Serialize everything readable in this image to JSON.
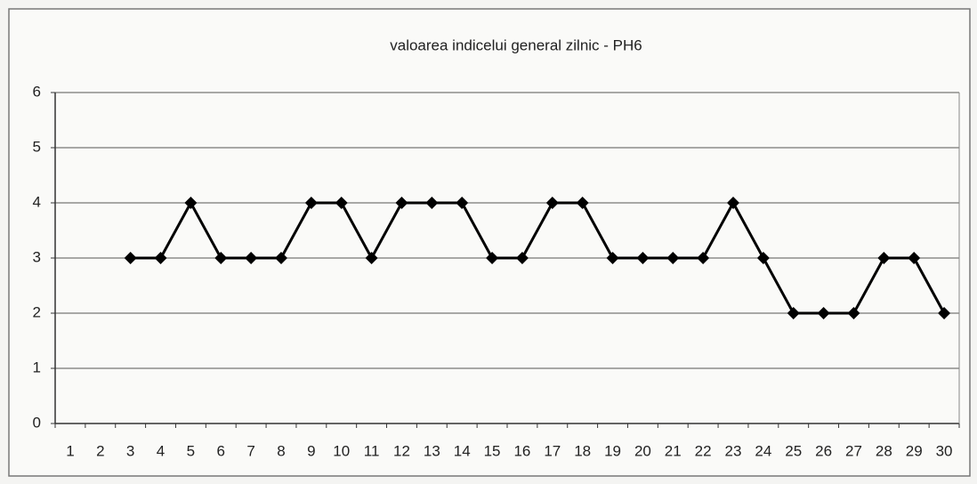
{
  "chart_data": {
    "type": "line",
    "title": "valoarea indicelui general zilnic - PH6",
    "categories": [
      "1",
      "2",
      "3",
      "4",
      "5",
      "6",
      "7",
      "8",
      "9",
      "10",
      "11",
      "12",
      "13",
      "14",
      "15",
      "16",
      "17",
      "18",
      "19",
      "20",
      "21",
      "22",
      "23",
      "24",
      "25",
      "26",
      "27",
      "28",
      "29",
      "30"
    ],
    "series": [
      {
        "name": "PH6",
        "color": "#000000",
        "values": [
          null,
          null,
          3,
          3,
          4,
          3,
          3,
          3,
          4,
          4,
          3,
          4,
          4,
          4,
          3,
          3,
          4,
          4,
          3,
          3,
          3,
          3,
          4,
          3,
          2,
          2,
          2,
          3,
          3,
          2
        ]
      }
    ],
    "ylim": [
      0,
      6
    ],
    "yticks": [
      0,
      1,
      2,
      3,
      4,
      5,
      6
    ],
    "grid": true
  }
}
